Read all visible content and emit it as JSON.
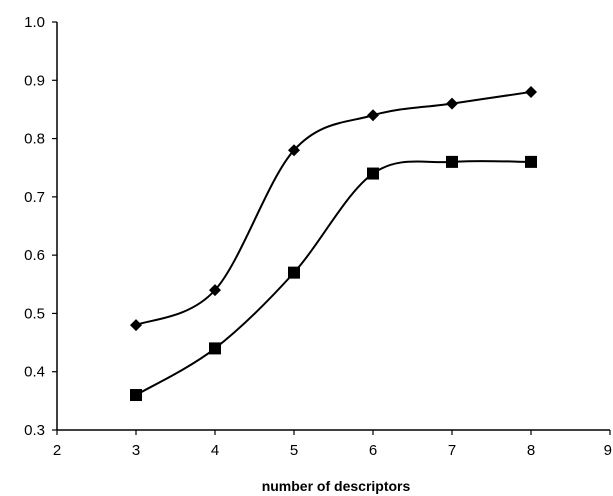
{
  "chart_data": {
    "type": "line",
    "title": "",
    "xlabel": "number of descriptors",
    "ylabel": "",
    "xlim": [
      2,
      9
    ],
    "ylim": [
      0.3,
      1.0
    ],
    "x_ticks": [
      "2",
      "3",
      "4",
      "5",
      "6",
      "7",
      "8",
      "9"
    ],
    "y_ticks": [
      "0.3",
      "0.4",
      "0.5",
      "0.6",
      "0.7",
      "0.8",
      "0.9",
      "1.0"
    ],
    "grid": false,
    "legend": "none",
    "x": [
      3,
      4,
      5,
      6,
      7,
      8
    ],
    "series": [
      {
        "marker": "diamond",
        "color": "#000000",
        "values": [
          0.48,
          0.54,
          0.78,
          0.84,
          0.86,
          0.88
        ]
      },
      {
        "marker": "square",
        "color": "#000000",
        "values": [
          0.36,
          0.44,
          0.57,
          0.74,
          0.76,
          0.76
        ]
      }
    ]
  }
}
